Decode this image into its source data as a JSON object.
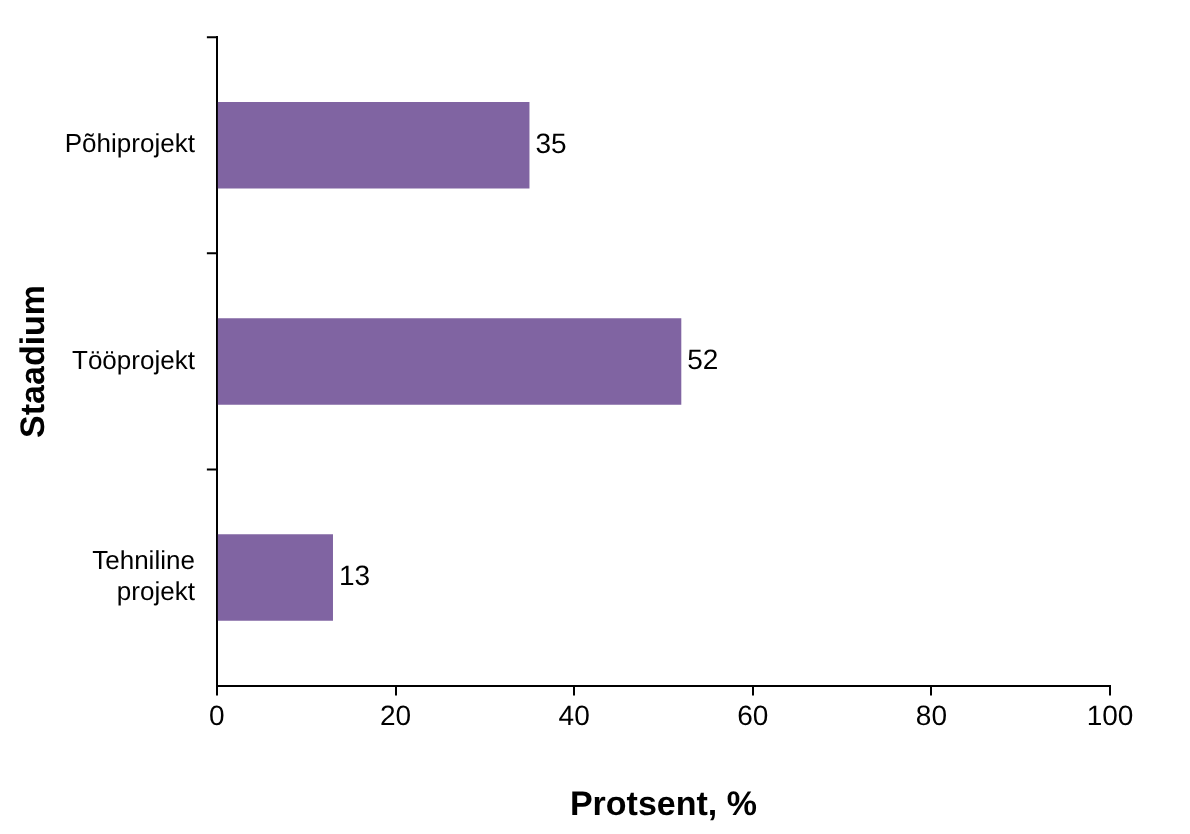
{
  "chart_data": {
    "type": "bar",
    "orientation": "horizontal",
    "categories": [
      "Põhiprojekt",
      "Tööprojekt",
      "Tehniline projekt"
    ],
    "values": [
      35,
      52,
      13
    ],
    "color": "#8064a2",
    "xlim": [
      0,
      100
    ],
    "xticks": [
      0,
      20,
      40,
      60,
      80,
      100
    ],
    "xlabel": "Protsent, %",
    "ylabel": "Staadium",
    "grid": false,
    "legend": false,
    "data_labels": true
  }
}
